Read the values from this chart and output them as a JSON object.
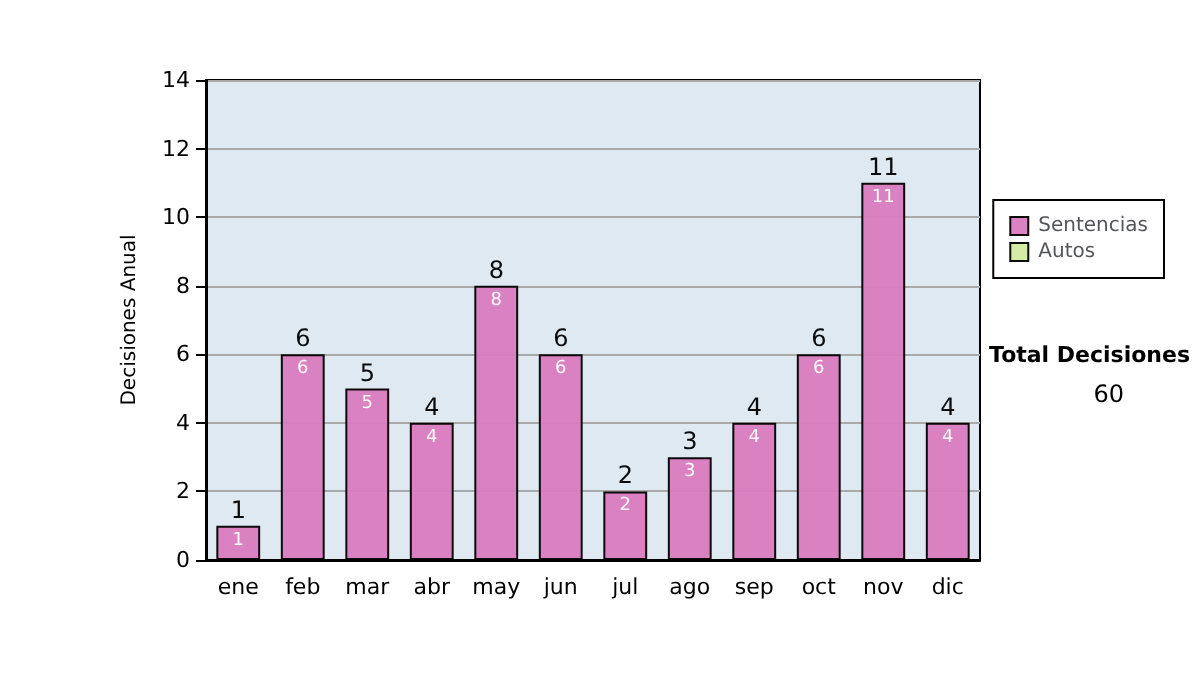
{
  "chart_data": {
    "type": "bar",
    "stacked": true,
    "ylabel": "Decisiones Anual",
    "categories": [
      "ene",
      "feb",
      "mar",
      "abr",
      "may",
      "jun",
      "jul",
      "ago",
      "sep",
      "oct",
      "nov",
      "dic"
    ],
    "series": [
      {
        "name": "Sentencias",
        "color": "#d97bbf",
        "values": [
          1,
          6,
          5,
          4,
          8,
          6,
          2,
          3,
          4,
          6,
          11,
          4
        ],
        "value_labels": [
          "1",
          "6",
          "5",
          "4",
          "8",
          "6",
          "2",
          "3",
          "4",
          "6",
          "11",
          "4"
        ]
      },
      {
        "name": "Autos",
        "color": "#d4eaa0",
        "values": [
          0,
          0,
          0,
          0,
          0,
          0,
          0,
          0,
          0,
          0,
          0,
          0
        ]
      }
    ],
    "totals": [
      "1",
      "6",
      "5",
      "4",
      "8",
      "6",
      "2",
      "3",
      "4",
      "6",
      "11",
      "4"
    ],
    "ylim": [
      0,
      14
    ],
    "yticks": [
      0,
      2,
      4,
      6,
      8,
      10,
      12,
      14
    ],
    "grid": "y",
    "legend": "right",
    "annotations": [
      "Total Decisiones",
      "60"
    ]
  }
}
